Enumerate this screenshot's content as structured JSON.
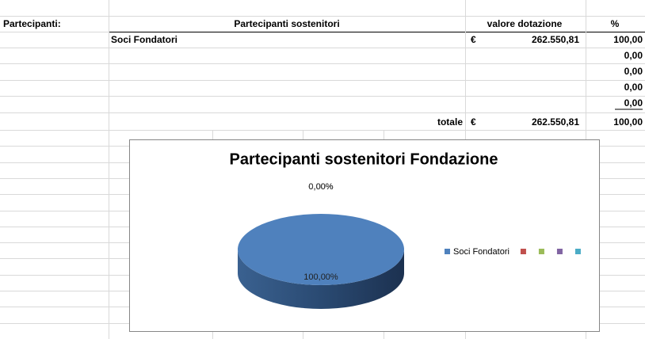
{
  "sheet": {
    "label": "Partecipanti:",
    "headers": [
      "Partecipanti sostenitori",
      "valore dotazione",
      "%"
    ],
    "rows": [
      {
        "name": "Soci Fondatori",
        "currency": "€",
        "value": "262.550,81",
        "percent": "100,00"
      },
      {
        "percent": "0,00"
      },
      {
        "percent": "0,00"
      },
      {
        "percent": "0,00"
      },
      {
        "percent": "0,00"
      }
    ],
    "total": {
      "label": "totale",
      "currency": "€",
      "value": "262.550,81",
      "percent": "100,00"
    }
  },
  "chart_data": {
    "type": "pie",
    "title": "Partecipanti sostenitori Fondazione",
    "categories": [
      "Soci Fondatori",
      null,
      null,
      null,
      null
    ],
    "values": [
      100,
      0,
      0,
      0,
      0
    ],
    "value_labels": [
      "100,00%",
      "0,00%",
      "0,00%",
      "0,00%",
      "0,00%"
    ],
    "colors": [
      "#4f81bd",
      "#c0504d",
      "#9bbb59",
      "#8064a2",
      "#4bacc6"
    ],
    "legend": "right"
  }
}
